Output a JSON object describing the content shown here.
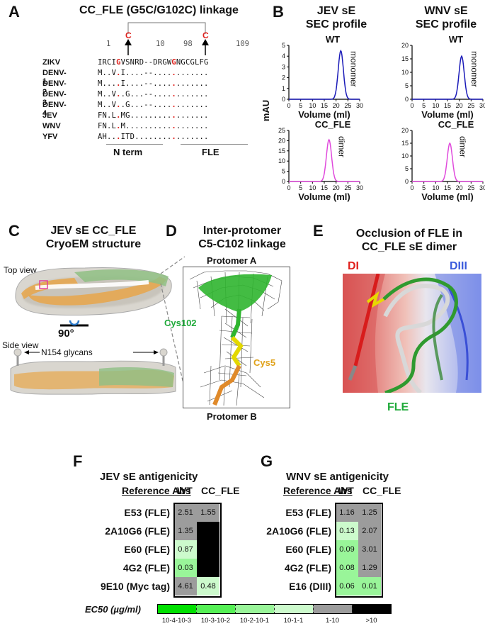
{
  "panels": {
    "a": {
      "label": "A",
      "title": "CC_FLE (G5C/G102C) linkage",
      "positions": [
        "1",
        "10",
        "98",
        "109"
      ],
      "cys_mark": "C",
      "rows": [
        {
          "species": "ZIKV",
          "n": "IRCI",
          "g1": "G",
          "n2": "VSNRD",
          "gap": "--",
          "c": "DRGW",
          "g2": "G",
          "c2": "NGCGLFG"
        },
        {
          "species": "DENV-1",
          "n": "M..V",
          "g1": ".",
          "n2": "I....",
          "gap": "--",
          "c": "....",
          "g2": ".",
          "c2": "......."
        },
        {
          "species": "DENV-2",
          "n": "M...",
          "g1": ".",
          "n2": "I....",
          "gap": "--",
          "c": "....",
          "g2": ".",
          "c2": "......."
        },
        {
          "species": "DENV-3",
          "n": "M..V",
          "g1": ".",
          "n2": ".G...",
          "gap": "--",
          "c": "....",
          "g2": ".",
          "c2": "......."
        },
        {
          "species": "DENV-4",
          "n": "M..V",
          "g1": ".",
          "n2": ".G...",
          "gap": "--",
          "c": "....",
          "g2": ".",
          "c2": "......."
        },
        {
          "species": "JEV",
          "n": "FN.L",
          "g1": ".",
          "n2": "MG...",
          "gap": "..",
          "c": "....",
          "g2": ".",
          "c2": "......."
        },
        {
          "species": "WNV",
          "n": "FN.L",
          "g1": ".",
          "n2": "M....",
          "gap": "..",
          "c": "....",
          "g2": ".",
          "c2": "......."
        },
        {
          "species": "YFV",
          "n": "AH..",
          "g1": ".",
          "n2": "ITD..",
          "gap": "..",
          "c": "....",
          "g2": ".",
          "c2": "......."
        }
      ],
      "nterm_label": "N term",
      "fle_label": "FLE"
    },
    "b": {
      "label": "B",
      "jev_title": [
        "JEV sE",
        "SEC profile"
      ],
      "wnv_title": [
        "WNV sE",
        "SEC profile"
      ],
      "ylabel": "mAU",
      "xlabel": "Volume (ml)",
      "wt_label": "WT",
      "cc_label": "CC_FLE",
      "monomer": "monomer",
      "dimer": "dimer"
    },
    "c": {
      "label": "C",
      "title": [
        "JEV sE CC_FLE",
        "CryoEM structure"
      ],
      "top_view": "Top view",
      "side_view": "Side view",
      "rotation": "90°",
      "glycans": "N154 glycans"
    },
    "d": {
      "label": "D",
      "title": [
        "Inter-protomer",
        "C5-C102 linkage"
      ],
      "protomer_a": "Protomer A",
      "protomer_b": "Protomer B",
      "cys102": "Cys102",
      "cys5": "Cys5"
    },
    "e": {
      "label": "E",
      "title": [
        "Occlusion of FLE in",
        "CC_FLE sE dimer"
      ],
      "di": "DI",
      "diii": "DIII",
      "fle": "FLE"
    },
    "f": {
      "label": "F",
      "title": "JEV sE antigenicity"
    },
    "g": {
      "label": "G",
      "title": "WNV sE antigenicity"
    },
    "heatmap": {
      "ref_header": "Reference Abs",
      "wt": "WT",
      "cc": "CC_FLE",
      "jev_rows": [
        {
          "name": "E53 (FLE)",
          "wt": "2.51",
          "cc": "1.55"
        },
        {
          "name": "2A10G6 (FLE)",
          "wt": "1.35",
          "cc": ""
        },
        {
          "name": "E60 (FLE)",
          "wt": "0.87",
          "cc": ""
        },
        {
          "name": "4G2 (FLE)",
          "wt": "0.03",
          "cc": ""
        },
        {
          "name": "9E10 (Myc tag)",
          "wt": "4.61",
          "cc": "0.48"
        }
      ],
      "wnv_rows": [
        {
          "name": "E53 (FLE)",
          "wt": "1.16",
          "cc": "1.25"
        },
        {
          "name": "2A10G6 (FLE)",
          "wt": "0.13",
          "cc": "2.07"
        },
        {
          "name": "E60 (FLE)",
          "wt": "0.09",
          "cc": "3.01"
        },
        {
          "name": "4G2 (FLE)",
          "wt": "0.08",
          "cc": "1.29"
        },
        {
          "name": "E16 (DIII)",
          "wt": "0.06",
          "cc": "0.01"
        }
      ],
      "legend_title": "EC50 (µg/ml)",
      "legend_labels": [
        "10-4-10-3",
        "10-3-10-2",
        "10-2-10-1",
        "10-1-1",
        "1-10",
        ">10"
      ],
      "colors": {
        "e4": "#00e000",
        "e3": "#55f055",
        "e2": "#99f599",
        "e1": "#ccfacc",
        "g1": "#9c9c9c",
        "g2": "#000000"
      }
    }
  },
  "chart_data": [
    {
      "type": "line",
      "title": "JEV sE SEC profile",
      "series": [
        {
          "name": "WT",
          "label": "monomer",
          "peak_x": 22,
          "peak_y": 4.5
        }
      ],
      "ylabel": "mAU",
      "xlabel": "Volume (ml)",
      "xlim": [
        0,
        30
      ],
      "ylim": [
        0,
        5
      ],
      "xticks": [
        0,
        5,
        10,
        15,
        20,
        25,
        30
      ],
      "yticks": [
        0,
        1,
        2,
        3,
        4,
        5
      ]
    },
    {
      "type": "line",
      "series": [
        {
          "name": "CC_FLE",
          "label": "dimer",
          "peak_x": 17,
          "peak_y": 20.5
        }
      ],
      "xlabel": "Volume (ml)",
      "xlim": [
        0,
        30
      ],
      "ylim": [
        0,
        25
      ],
      "xticks": [
        0,
        5,
        10,
        15,
        20,
        25,
        30
      ],
      "yticks": [
        0,
        5,
        10,
        15,
        20,
        25
      ]
    },
    {
      "type": "line",
      "title": "WNV sE SEC profile",
      "series": [
        {
          "name": "WT",
          "label": "monomer",
          "peak_x": 21,
          "peak_y": 16
        }
      ],
      "xlabel": "Volume (ml)",
      "xlim": [
        0,
        30
      ],
      "ylim": [
        0,
        20
      ],
      "xticks": [
        0,
        5,
        10,
        15,
        20,
        25,
        30
      ],
      "yticks": [
        0,
        5,
        10,
        15,
        20
      ]
    },
    {
      "type": "line",
      "series": [
        {
          "name": "CC_FLE",
          "label": "dimer",
          "peak_x": 16,
          "peak_y": 15
        }
      ],
      "xlabel": "Volume (ml)",
      "xlim": [
        0,
        30
      ],
      "ylim": [
        0,
        20
      ],
      "xticks": [
        0,
        5,
        10,
        15,
        20,
        25,
        30
      ],
      "yticks": [
        0,
        5,
        10,
        15,
        20
      ]
    }
  ]
}
